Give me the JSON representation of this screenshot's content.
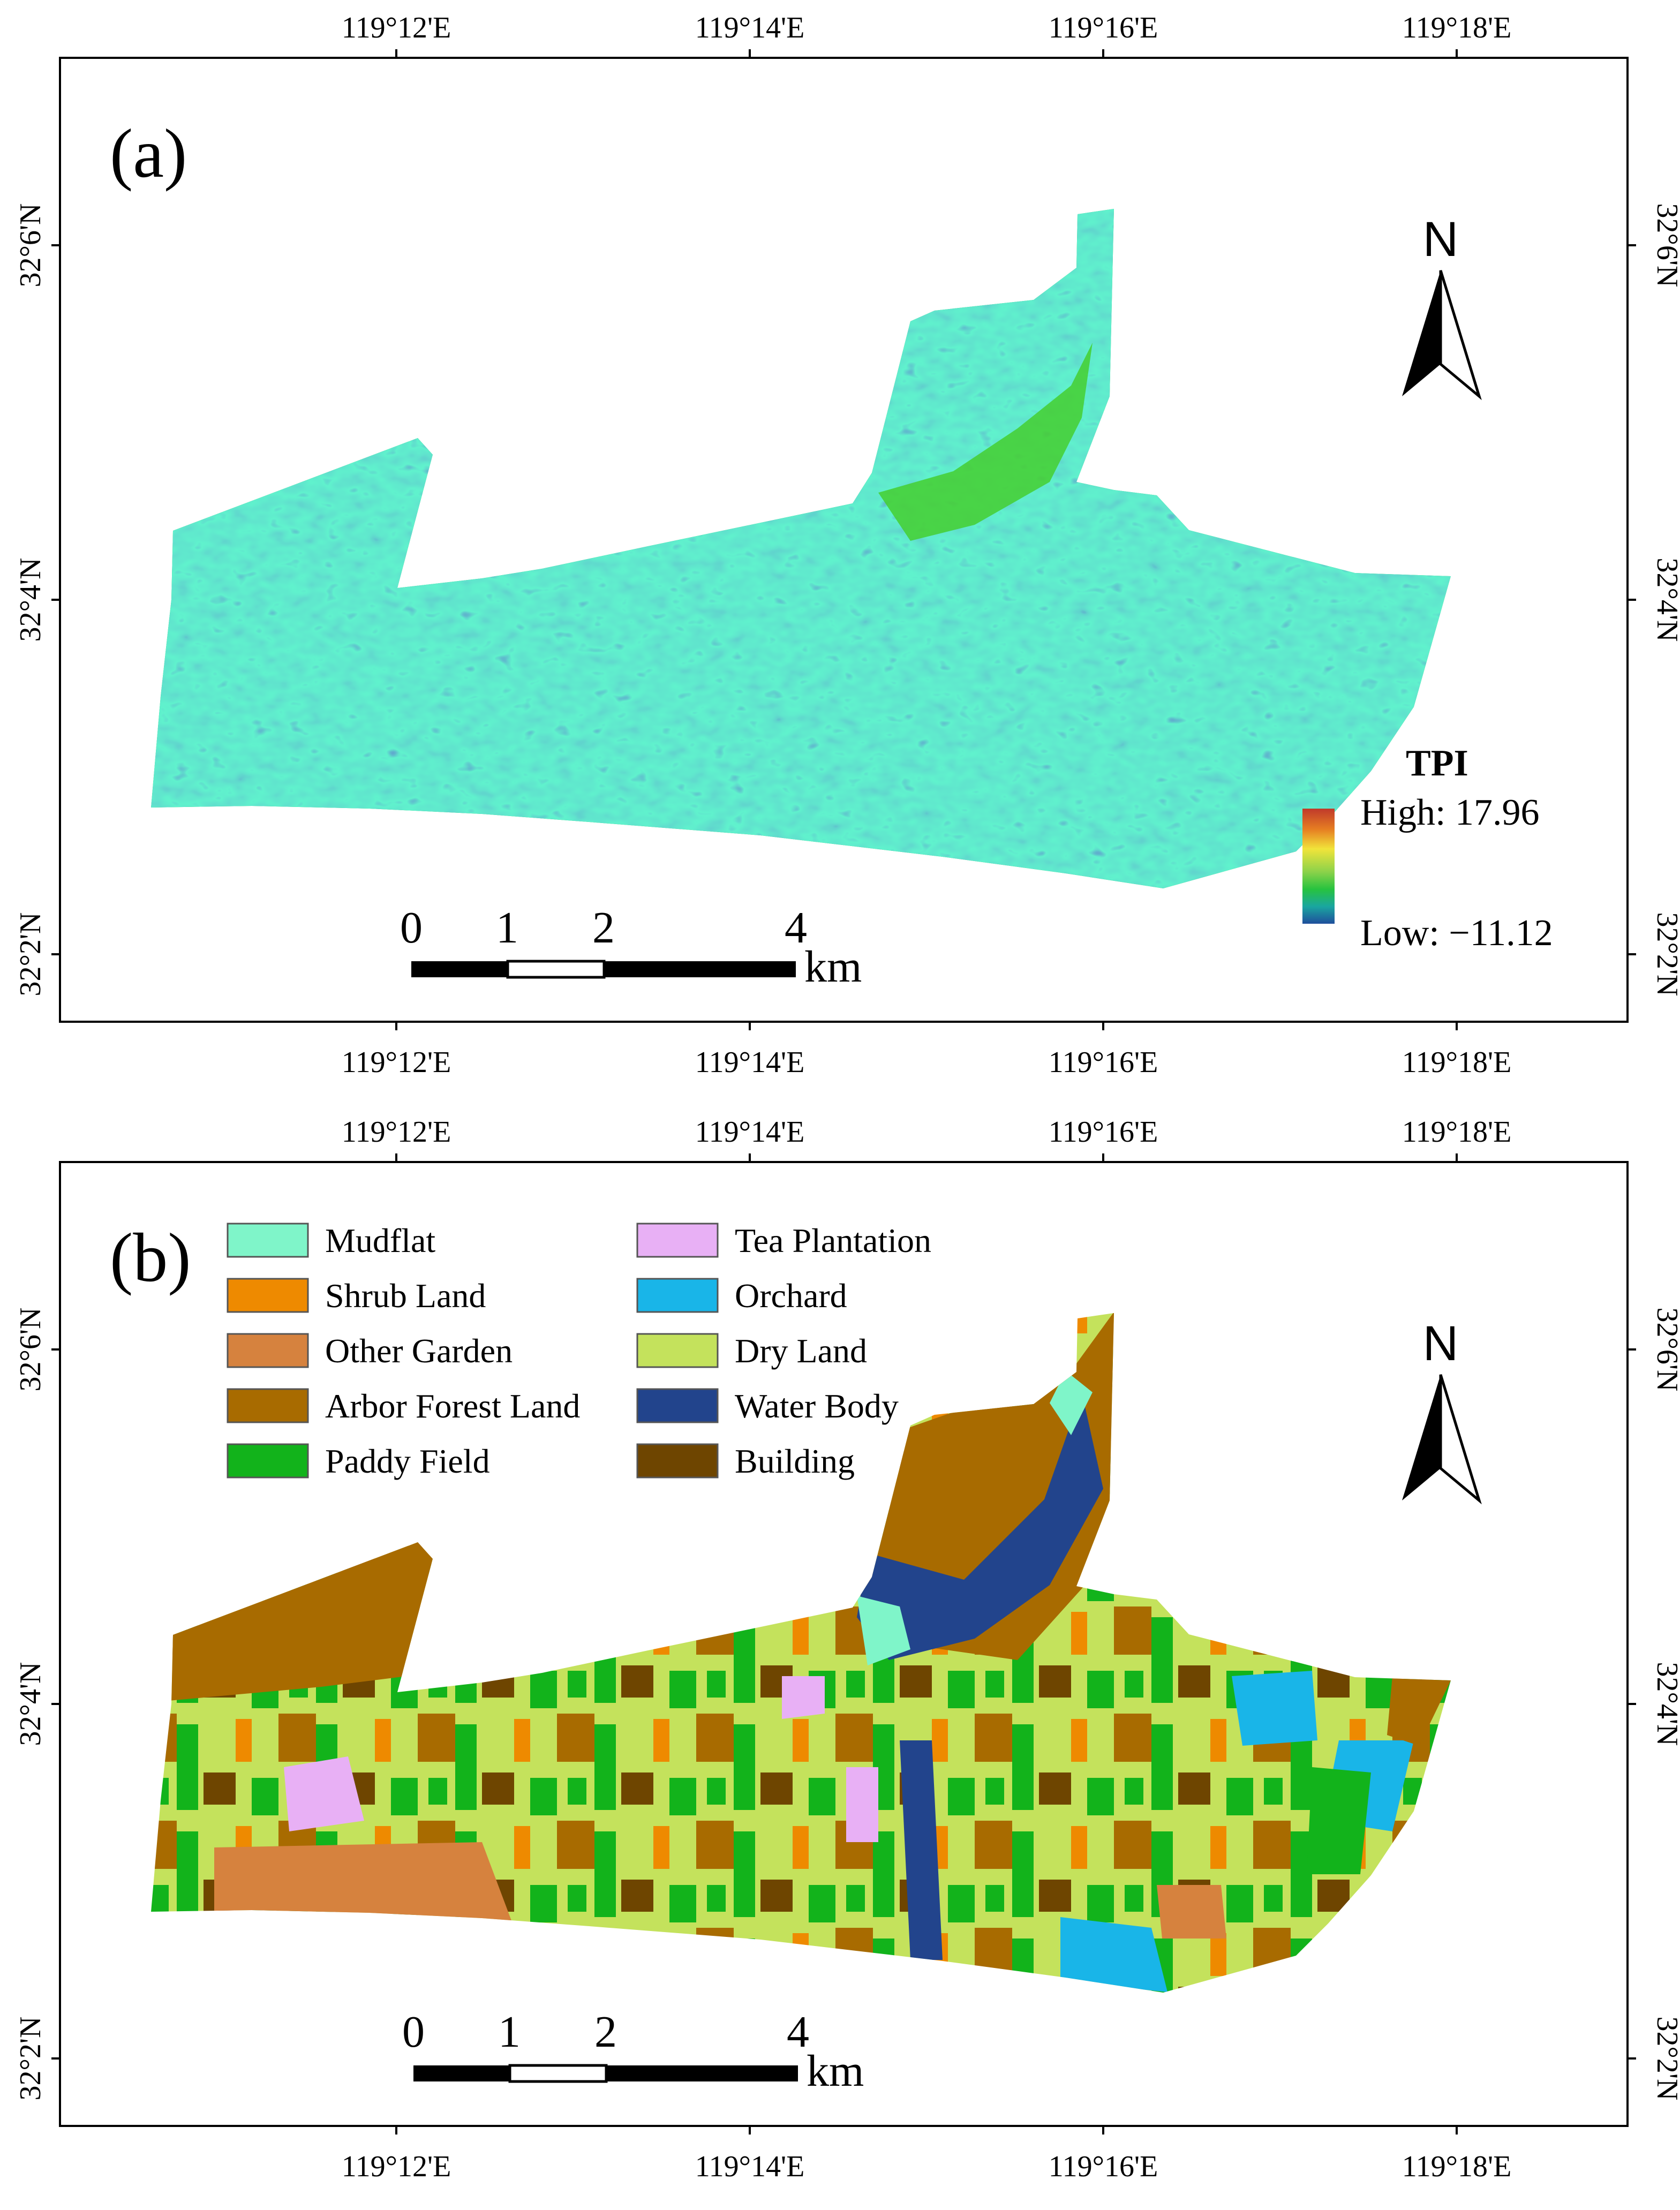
{
  "figure": {
    "panel_a": {
      "label": "(a)",
      "top_lon_ticks": [
        "119°12'E",
        "119°14'E",
        "119°16'E",
        "119°18'E"
      ],
      "bottom_lon_ticks": [
        "119°12'E",
        "119°14'E",
        "119°16'E",
        "119°18'E"
      ],
      "lat_ticks": [
        "32°6'N",
        "32°4'N",
        "32°2'N"
      ],
      "legend": {
        "title": "TPI",
        "high_label": "High: 17.96",
        "low_label": "Low: −11.12",
        "ramp_colors": [
          "#c0392b",
          "#e67e22",
          "#f1e43a",
          "#8bd24a",
          "#27c33f",
          "#1aa6a0",
          "#1f4e9c"
        ]
      },
      "north_label": "N",
      "scale": {
        "ticks": [
          "0",
          "1",
          "2",
          "4"
        ],
        "unit": "km"
      }
    },
    "panel_b": {
      "label": "(b)",
      "top_lon_ticks": [
        "119°12'E",
        "119°14'E",
        "119°16'E",
        "119°18'E"
      ],
      "bottom_lon_ticks": [
        "119°12'E",
        "119°14'E",
        "119°16'E",
        "119°18'E"
      ],
      "lat_ticks": [
        "32°6'N",
        "32°4'N",
        "32°2'N"
      ],
      "north_label": "N",
      "scale": {
        "ticks": [
          "0",
          "1",
          "2",
          "4"
        ],
        "unit": "km"
      },
      "classes": [
        {
          "name": "Mudflat",
          "color": "#7ff5c9"
        },
        {
          "name": "Shrub Land",
          "color": "#ee8a00"
        },
        {
          "name": "Other Garden",
          "color": "#d6823e"
        },
        {
          "name": "Arbor Forest Land",
          "color": "#a86b00"
        },
        {
          "name": "Paddy Field",
          "color": "#12b31b"
        },
        {
          "name": "Tea Plantation",
          "color": "#e8b0f5"
        },
        {
          "name": "Orchard",
          "color": "#19b5e8"
        },
        {
          "name": "Dry Land",
          "color": "#c4e25c"
        },
        {
          "name": "Water Body",
          "color": "#22448c"
        },
        {
          "name": "Building",
          "color": "#6e4500"
        }
      ]
    }
  }
}
